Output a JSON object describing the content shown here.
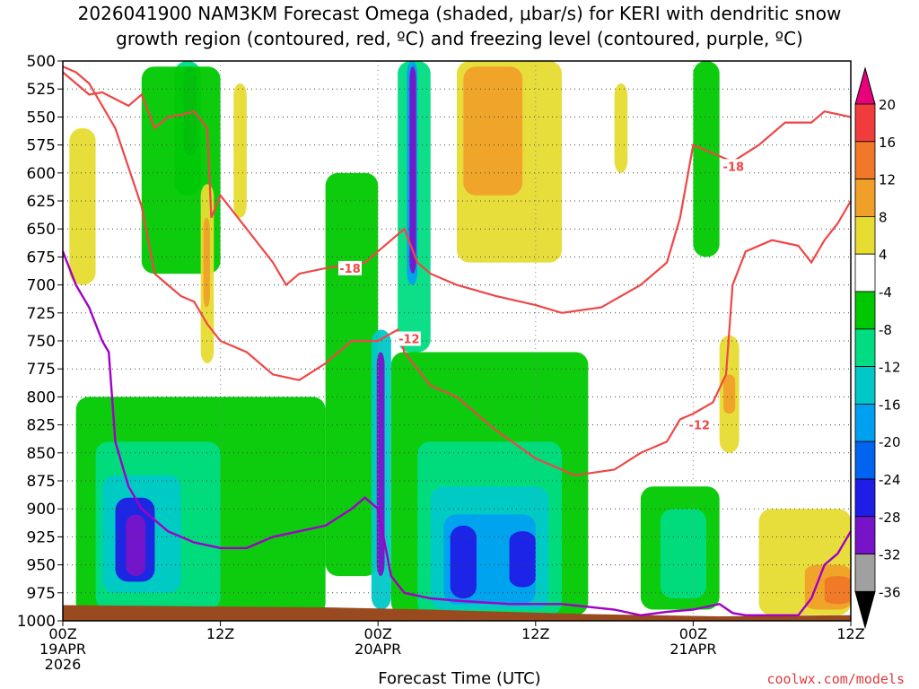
{
  "title_line1": "2026041900 NAM3KM Forecast Omega (shaded, μbar/s) for KERI with dendritic snow",
  "title_line2": "growth region (contoured, red, ºC) and freezing level (contoured, purple, ºC)",
  "credit": "coolwx.com/models",
  "chart_data": {
    "type": "heatmap",
    "title": "2026041900 NAM3KM Forecast Omega (shaded, μbar/s) for KERI with dendritic snow growth region (contoured, red, ºC) and freezing level (contoured, purple, ºC)",
    "xlabel": "Forecast Time (UTC)",
    "ylabel": "",
    "x_range_hours": [
      0,
      60
    ],
    "y_range": [
      500,
      1000
    ],
    "y_ticks": [
      500,
      525,
      550,
      575,
      600,
      625,
      650,
      675,
      700,
      725,
      750,
      775,
      800,
      825,
      850,
      875,
      900,
      925,
      950,
      975,
      1000
    ],
    "x_ticks": [
      {
        "hour": 0,
        "label": [
          "00Z",
          "19APR",
          "2026"
        ]
      },
      {
        "hour": 12,
        "label": [
          "12Z"
        ]
      },
      {
        "hour": 24,
        "label": [
          "00Z",
          "20APR"
        ]
      },
      {
        "hour": 36,
        "label": [
          "12Z"
        ]
      },
      {
        "hour": 48,
        "label": [
          "00Z",
          "21APR"
        ]
      },
      {
        "hour": 60,
        "label": [
          "12Z"
        ]
      }
    ],
    "colorbar": {
      "labels": [
        20,
        16,
        12,
        8,
        4,
        -4,
        -8,
        -12,
        -16,
        -20,
        -24,
        -28,
        -32,
        -36
      ],
      "colors": [
        "#e8007a",
        "#f03c3c",
        "#f07828",
        "#f0a028",
        "#e0b028",
        "#e6dc32",
        "#ffffff",
        "#00c800",
        "#00dc82",
        "#00c8c8",
        "#00a0f0",
        "#0064f0",
        "#1e1ee6",
        "#7814c8",
        "#a000c8",
        "#a0a0a0",
        "#000000"
      ]
    },
    "omega_cells": [
      {
        "h": [
          8.5,
          10.5
        ],
        "p": [
          500,
          620
        ],
        "v": -12
      },
      {
        "h": [
          9.2,
          10.2
        ],
        "p": [
          505,
          585
        ],
        "v": -24
      },
      {
        "h": [
          9.5,
          10.0
        ],
        "p": [
          515,
          575
        ],
        "v": -28
      },
      {
        "h": [
          6,
          12
        ],
        "p": [
          505,
          690
        ],
        "v": -8
      },
      {
        "h": [
          25.5,
          28
        ],
        "p": [
          500,
          760
        ],
        "v": -12
      },
      {
        "h": [
          26.2,
          27.0
        ],
        "p": [
          500,
          700
        ],
        "v": -20
      },
      {
        "h": [
          26.4,
          26.9
        ],
        "p": [
          505,
          690
        ],
        "v": -28
      },
      {
        "h": [
          20,
          24
        ],
        "p": [
          600,
          960
        ],
        "v": -8
      },
      {
        "h": [
          23.5,
          25
        ],
        "p": [
          740,
          990
        ],
        "v": -16
      },
      {
        "h": [
          23.9,
          24.5
        ],
        "p": [
          760,
          960
        ],
        "v": -28
      },
      {
        "h": [
          1,
          20
        ],
        "p": [
          800,
          995
        ],
        "v": -8
      },
      {
        "h": [
          2.5,
          12
        ],
        "p": [
          840,
          990
        ],
        "v": -12
      },
      {
        "h": [
          3,
          9
        ],
        "p": [
          870,
          975
        ],
        "v": -16
      },
      {
        "h": [
          4,
          7
        ],
        "p": [
          890,
          965
        ],
        "v": -24
      },
      {
        "h": [
          4.8,
          6.3
        ],
        "p": [
          905,
          960
        ],
        "v": -28
      },
      {
        "h": [
          25,
          40
        ],
        "p": [
          760,
          995
        ],
        "v": -8
      },
      {
        "h": [
          27,
          38
        ],
        "p": [
          840,
          995
        ],
        "v": -12
      },
      {
        "h": [
          28,
          37
        ],
        "p": [
          880,
          990
        ],
        "v": -16
      },
      {
        "h": [
          29,
          36
        ],
        "p": [
          905,
          985
        ],
        "v": -20
      },
      {
        "h": [
          29.5,
          31.5
        ],
        "p": [
          915,
          980
        ],
        "v": -24
      },
      {
        "h": [
          34,
          36
        ],
        "p": [
          920,
          970
        ],
        "v": -24
      },
      {
        "h": [
          48,
          50
        ],
        "p": [
          500,
          675
        ],
        "v": -8
      },
      {
        "h": [
          44,
          50
        ],
        "p": [
          880,
          990
        ],
        "v": -8
      },
      {
        "h": [
          45.5,
          49
        ],
        "p": [
          900,
          980
        ],
        "v": -12
      },
      {
        "h": [
          30,
          38
        ],
        "p": [
          500,
          680
        ],
        "v": 4
      },
      {
        "h": [
          30.5,
          35
        ],
        "p": [
          505,
          620
        ],
        "v": 8
      },
      {
        "h": [
          50,
          51.5
        ],
        "p": [
          745,
          850
        ],
        "v": 4
      },
      {
        "h": [
          50.3,
          51.2
        ],
        "p": [
          780,
          815
        ],
        "v": 8
      },
      {
        "h": [
          53,
          60
        ],
        "p": [
          900,
          995
        ],
        "v": 4
      },
      {
        "h": [
          56.5,
          60
        ],
        "p": [
          950,
          990
        ],
        "v": 8
      },
      {
        "h": [
          58,
          60
        ],
        "p": [
          960,
          985
        ],
        "v": 12
      },
      {
        "h": [
          0.5,
          2.5
        ],
        "p": [
          560,
          700
        ],
        "v": 4
      },
      {
        "h": [
          10.5,
          11.5
        ],
        "p": [
          610,
          770
        ],
        "v": 4
      },
      {
        "h": [
          10.7,
          11.2
        ],
        "p": [
          640,
          720
        ],
        "v": 8
      },
      {
        "h": [
          13,
          14
        ],
        "p": [
          520,
          640
        ],
        "v": 4
      },
      {
        "h": [
          42,
          43
        ],
        "p": [
          520,
          600
        ],
        "v": 4
      }
    ],
    "dendritic_region": {
      "color": "#f04646",
      "contour_m12_label": "-12",
      "contour_m18_label": "-18",
      "m18_label_2": "-18",
      "m12_label_2": "-12",
      "contour_m18": [
        [
          0,
          510
        ],
        [
          2,
          530
        ],
        [
          3,
          528
        ],
        [
          5,
          540
        ],
        [
          6,
          530
        ],
        [
          7,
          560
        ],
        [
          8,
          550
        ],
        [
          9,
          548
        ],
        [
          10,
          545
        ],
        [
          11,
          560
        ],
        [
          11.3,
          640
        ],
        [
          12,
          620
        ],
        [
          14,
          650
        ],
        [
          16,
          680
        ],
        [
          17,
          700
        ],
        [
          18,
          690
        ],
        [
          20,
          685
        ],
        [
          23,
          680
        ],
        [
          26,
          650
        ],
        [
          27,
          680
        ],
        [
          28,
          690
        ],
        [
          30,
          700
        ],
        [
          33,
          710
        ],
        [
          36,
          718
        ],
        [
          38,
          725
        ],
        [
          41,
          720
        ],
        [
          44,
          700
        ],
        [
          46,
          680
        ],
        [
          47,
          640
        ],
        [
          48,
          575
        ],
        [
          49,
          580
        ],
        [
          51,
          590
        ],
        [
          53,
          575
        ],
        [
          55,
          555
        ],
        [
          56,
          555
        ],
        [
          57,
          555
        ],
        [
          58,
          545
        ],
        [
          60,
          550
        ]
      ],
      "contour_m12": [
        [
          0,
          505
        ],
        [
          1,
          510
        ],
        [
          2,
          520
        ],
        [
          4,
          560
        ],
        [
          6,
          630
        ],
        [
          7,
          690
        ],
        [
          8,
          700
        ],
        [
          9,
          710
        ],
        [
          10,
          715
        ],
        [
          11,
          735
        ],
        [
          12,
          750
        ],
        [
          14,
          760
        ],
        [
          16,
          780
        ],
        [
          18,
          785
        ],
        [
          20,
          770
        ],
        [
          22,
          750
        ],
        [
          24,
          750
        ],
        [
          25.5,
          740
        ],
        [
          26,
          760
        ],
        [
          28,
          790
        ],
        [
          30,
          800
        ],
        [
          33,
          830
        ],
        [
          36,
          855
        ],
        [
          39,
          870
        ],
        [
          42,
          865
        ],
        [
          44,
          850
        ],
        [
          46,
          840
        ],
        [
          47,
          820
        ],
        [
          48,
          815
        ],
        [
          49.5,
          805
        ],
        [
          50.5,
          780
        ],
        [
          51,
          700
        ],
        [
          52,
          670
        ],
        [
          54,
          660
        ],
        [
          56,
          665
        ],
        [
          57,
          680
        ],
        [
          58,
          660
        ],
        [
          59,
          645
        ],
        [
          60,
          625
        ]
      ]
    },
    "freezing_level": {
      "color": "#a000c8",
      "contour": [
        [
          0,
          670
        ],
        [
          1,
          700
        ],
        [
          2,
          720
        ],
        [
          3,
          750
        ],
        [
          3.5,
          760
        ],
        [
          4,
          840
        ],
        [
          5,
          880
        ],
        [
          6,
          900
        ],
        [
          8,
          920
        ],
        [
          10,
          930
        ],
        [
          12,
          935
        ],
        [
          14,
          935
        ],
        [
          16,
          925
        ],
        [
          18,
          920
        ],
        [
          20,
          915
        ],
        [
          22,
          900
        ],
        [
          23,
          890
        ],
        [
          24,
          900
        ],
        [
          24.5,
          930
        ],
        [
          25,
          960
        ],
        [
          26,
          975
        ],
        [
          28,
          980
        ],
        [
          30,
          982
        ],
        [
          34,
          985
        ],
        [
          38,
          985
        ],
        [
          42,
          990
        ],
        [
          44,
          995
        ],
        [
          46,
          992
        ],
        [
          48,
          990
        ],
        [
          50,
          985
        ],
        [
          51,
          993
        ],
        [
          52,
          995
        ],
        [
          54,
          995
        ],
        [
          56,
          995
        ],
        [
          57,
          980
        ],
        [
          58,
          950
        ],
        [
          59,
          940
        ],
        [
          60,
          920
        ]
      ]
    },
    "terrain_color": "#994a1e"
  }
}
